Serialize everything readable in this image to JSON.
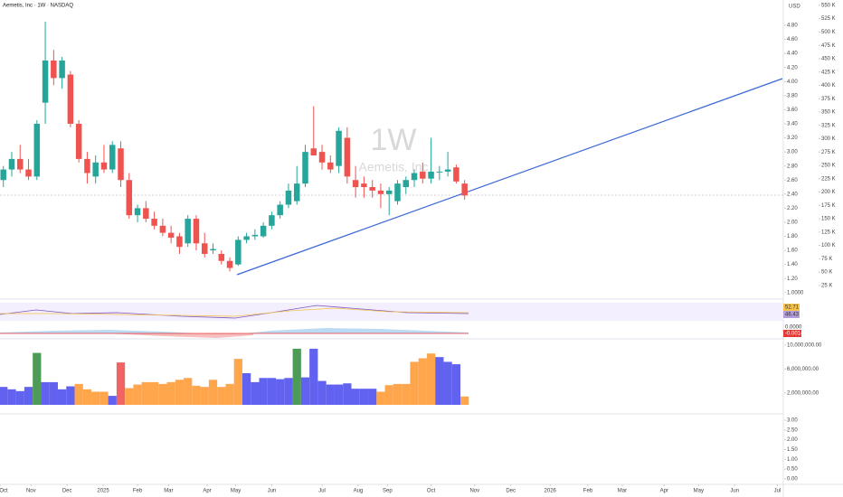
{
  "chart_data": {
    "type": "candlestick",
    "title": "Aemetis, Inc · 1W · NASDAQ",
    "currency": "USD",
    "watermark": "1W",
    "watermark_name": "Aemetis, Inc",
    "up_color": "#26a69a",
    "down_color": "#ef5350",
    "open": [
      2.6,
      2.75,
      2.9,
      2.75,
      2.65,
      3.7,
      4.3,
      4.05,
      4.1,
      3.4,
      2.9,
      2.65,
      2.85,
      2.75,
      3.05,
      2.6,
      2.1,
      2.2,
      2.05,
      1.95,
      1.85,
      1.8,
      1.7,
      2.05,
      1.7,
      1.6,
      1.55,
      1.45,
      1.4,
      1.75,
      1.8,
      1.8,
      1.95,
      2.1,
      2.25,
      2.3,
      2.55,
      3.05,
      3.0,
      2.85,
      2.8,
      3.2,
      2.6,
      2.55,
      2.5,
      2.45,
      2.4,
      2.3,
      2.5,
      2.6,
      2.72,
      2.62,
      2.72,
      2.72,
      2.78,
      2.55
    ],
    "high": [
      2.8,
      3.0,
      3.1,
      2.9,
      3.45,
      4.85,
      4.45,
      4.35,
      4.15,
      3.45,
      3.0,
      2.95,
      3.1,
      3.15,
      3.15,
      2.7,
      2.25,
      2.3,
      2.15,
      2.05,
      1.95,
      1.85,
      2.1,
      2.1,
      1.85,
      1.7,
      1.6,
      1.5,
      1.8,
      1.85,
      1.9,
      2.0,
      2.15,
      2.3,
      2.55,
      2.8,
      3.1,
      3.65,
      3.1,
      2.95,
      3.35,
      3.35,
      2.8,
      2.65,
      2.6,
      2.55,
      2.5,
      2.6,
      2.65,
      2.75,
      2.85,
      3.2,
      2.8,
      3.0,
      2.82,
      2.6
    ],
    "low": [
      2.5,
      2.65,
      2.7,
      2.6,
      2.6,
      3.4,
      3.95,
      3.9,
      3.35,
      2.85,
      2.55,
      2.55,
      2.7,
      2.7,
      2.5,
      2.05,
      2.0,
      2.0,
      1.9,
      1.8,
      1.7,
      1.55,
      1.65,
      1.6,
      1.5,
      1.55,
      1.4,
      1.3,
      1.38,
      1.7,
      1.75,
      1.78,
      1.9,
      2.05,
      2.2,
      2.25,
      2.5,
      2.95,
      2.75,
      2.7,
      2.7,
      2.55,
      2.35,
      2.35,
      2.35,
      2.2,
      2.1,
      2.25,
      2.4,
      2.5,
      2.55,
      2.55,
      2.6,
      2.65,
      2.55,
      2.32
    ],
    "close": [
      2.75,
      2.9,
      2.75,
      2.65,
      3.4,
      4.3,
      4.05,
      4.3,
      3.4,
      2.9,
      2.7,
      2.85,
      2.75,
      3.1,
      2.6,
      2.1,
      2.2,
      2.05,
      1.95,
      1.85,
      1.78,
      1.65,
      2.05,
      1.7,
      1.55,
      1.62,
      1.45,
      1.35,
      1.75,
      1.8,
      1.82,
      1.95,
      2.1,
      2.25,
      2.45,
      2.55,
      3.0,
      2.95,
      2.85,
      2.75,
      3.3,
      2.65,
      2.5,
      2.5,
      2.45,
      2.4,
      2.45,
      2.55,
      2.6,
      2.7,
      2.62,
      2.72,
      2.72,
      2.75,
      2.58,
      2.38
    ],
    "volume": [
      3000000,
      2600000,
      2300000,
      3000000,
      8700000,
      3800000,
      3800000,
      2600000,
      3100000,
      3500000,
      2600000,
      2200000,
      2200000,
      1500000,
      7100000,
      2800000,
      3400000,
      3800000,
      3800000,
      3500000,
      3800000,
      4200000,
      4500000,
      3200000,
      3000000,
      4200000,
      3000000,
      3500000,
      7700000,
      5300000,
      3800000,
      4500000,
      4500000,
      4300000,
      4500000,
      9400000,
      4600000,
      9400000,
      4000000,
      3400000,
      3400000,
      3600000,
      2700000,
      2700000,
      2700000,
      2200000,
      3300000,
      3500000,
      3500000,
      7200000,
      7800000,
      8600000,
      8000000,
      7200000,
      6800000,
      1400000
    ],
    "volume_colors": [
      "#6262f0",
      "#6262f0",
      "#6262f0",
      "#6262f0",
      "#4e9a57",
      "#6262f0",
      "#6262f0",
      "#6262f0",
      "#6262f0",
      "#ffa64d",
      "#ffa64d",
      "#ffa64d",
      "#ffa64d",
      "#6262f0",
      "#f06464",
      "#ffa64d",
      "#ffa64d",
      "#ffa64d",
      "#ffa64d",
      "#ffa64d",
      "#ffa64d",
      "#ffa64d",
      "#ffa64d",
      "#ffa64d",
      "#ffa64d",
      "#ffa64d",
      "#ffa64d",
      "#ffa64d",
      "#ffa64d",
      "#6262f0",
      "#6262f0",
      "#6262f0",
      "#6262f0",
      "#6262f0",
      "#6262f0",
      "#4e9a57",
      "#6262f0",
      "#6262f0",
      "#6262f0",
      "#6262f0",
      "#6262f0",
      "#6262f0",
      "#6262f0",
      "#6262f0",
      "#6262f0",
      "#ffa64d",
      "#ffa64d",
      "#ffa64d",
      "#ffa64d",
      "#ffa64d",
      "#ffa64d",
      "#ffa64d",
      "#6262f0",
      "#6262f0",
      "#6262f0",
      "#ffa64d"
    ],
    "xlim": [
      -0.4,
      93
    ],
    "xticks": [
      {
        "value": -0.4,
        "label": "Oct"
      },
      {
        "value": 3.3,
        "label": "Nov"
      },
      {
        "value": 7.6,
        "label": "Dec"
      },
      {
        "value": 11.9,
        "label": "2025"
      },
      {
        "value": 16,
        "label": "Feb"
      },
      {
        "value": 19.7,
        "label": "Mar"
      },
      {
        "value": 24.3,
        "label": "Apr"
      },
      {
        "value": 27.7,
        "label": "May"
      },
      {
        "value": 32,
        "label": "Jun"
      },
      {
        "value": 38,
        "label": "Jul"
      },
      {
        "value": 42.3,
        "label": "Aug"
      },
      {
        "value": 45.8,
        "label": "Sep"
      },
      {
        "value": 51,
        "label": "Oct"
      },
      {
        "value": 56.2,
        "label": "Nov"
      },
      {
        "value": 60.5,
        "label": "Dec"
      },
      {
        "value": 65.2,
        "label": "2026"
      },
      {
        "value": 69.7,
        "label": "Feb"
      },
      {
        "value": 73.8,
        "label": "Mar"
      },
      {
        "value": 78.8,
        "label": "Apr"
      },
      {
        "value": 82.9,
        "label": "May"
      },
      {
        "value": 87.2,
        "label": "Jun"
      },
      {
        "value": 92.3,
        "label": "Jul"
      }
    ],
    "ylim": [
      0.92,
      5.16
    ],
    "yticks": [
      {
        "value": 1,
        "label": "1.0000"
      },
      {
        "value": 1.2,
        "label": "1.20"
      },
      {
        "value": 1.4,
        "label": "1.40"
      },
      {
        "value": 1.6,
        "label": "1.60"
      },
      {
        "value": 1.8,
        "label": "1.80"
      },
      {
        "value": 2,
        "label": "2.00"
      },
      {
        "value": 2.2,
        "label": "2.20"
      },
      {
        "value": 2.4,
        "label": "2.40"
      },
      {
        "value": 2.6,
        "label": "2.60"
      },
      {
        "value": 2.8,
        "label": "2.80"
      },
      {
        "value": 3,
        "label": "3.00"
      },
      {
        "value": 3.2,
        "label": "3.20"
      },
      {
        "value": 3.4,
        "label": "3.40"
      },
      {
        "value": 3.6,
        "label": "3.60"
      },
      {
        "value": 3.8,
        "label": "3.80"
      },
      {
        "value": 4,
        "label": "4.00"
      },
      {
        "value": 4.2,
        "label": "4.20"
      },
      {
        "value": 4.4,
        "label": "4.40"
      },
      {
        "value": 4.6,
        "label": "4.60"
      },
      {
        "value": 4.8,
        "label": "4.80"
      }
    ],
    "y2lim": [
      1000,
      560000
    ],
    "y2ticks": [
      {
        "value": 25000,
        "label": "25 K"
      },
      {
        "value": 50000,
        "label": "50 K"
      },
      {
        "value": 75000,
        "label": "75 K"
      },
      {
        "value": 100000,
        "label": "100 K"
      },
      {
        "value": 125000,
        "label": "125 K"
      },
      {
        "value": 150000,
        "label": "150 K"
      },
      {
        "value": 175000,
        "label": "175 K"
      },
      {
        "value": 200000,
        "label": "200 K"
      },
      {
        "value": 225000,
        "label": "225 K"
      },
      {
        "value": 250000,
        "label": "250 K"
      },
      {
        "value": 275000,
        "label": "275 K"
      },
      {
        "value": 300000,
        "label": "300 K"
      },
      {
        "value": 325000,
        "label": "325 K"
      },
      {
        "value": 350000,
        "label": "350 K"
      },
      {
        "value": 375000,
        "label": "375 K"
      },
      {
        "value": 400000,
        "label": "400 K"
      },
      {
        "value": 425000,
        "label": "425 K"
      },
      {
        "value": 450000,
        "label": "450 K"
      },
      {
        "value": 475000,
        "label": "475 K"
      },
      {
        "value": 500000,
        "label": "500 K"
      },
      {
        "value": 525000,
        "label": "525 K"
      },
      {
        "value": 550000,
        "label": "550 K"
      }
    ],
    "vlim": [
      0,
      10900000
    ],
    "vticks": [
      {
        "value": 2000000,
        "label": "2,000,000.00"
      },
      {
        "value": 6000000,
        "label": "6,000,000.00"
      },
      {
        "value": 10000000,
        "label": "10,000,000.00"
      }
    ],
    "blim": [
      0,
      3
    ],
    "bticks": [
      {
        "value": 0,
        "label": "0.00"
      },
      {
        "value": 0.5,
        "label": "0.50"
      },
      {
        "value": 1,
        "label": "1.00"
      },
      {
        "value": 1.5,
        "label": "1.50"
      },
      {
        "value": 2,
        "label": "2.00"
      },
      {
        "value": 2.5,
        "label": "2.50"
      },
      {
        "value": 3,
        "label": "3.00"
      }
    ],
    "indicators": {
      "rsi": "52.71",
      "rsi_ma": "46.43",
      "macd": "0.0000",
      "macd_hist": "-0.0014"
    }
  }
}
